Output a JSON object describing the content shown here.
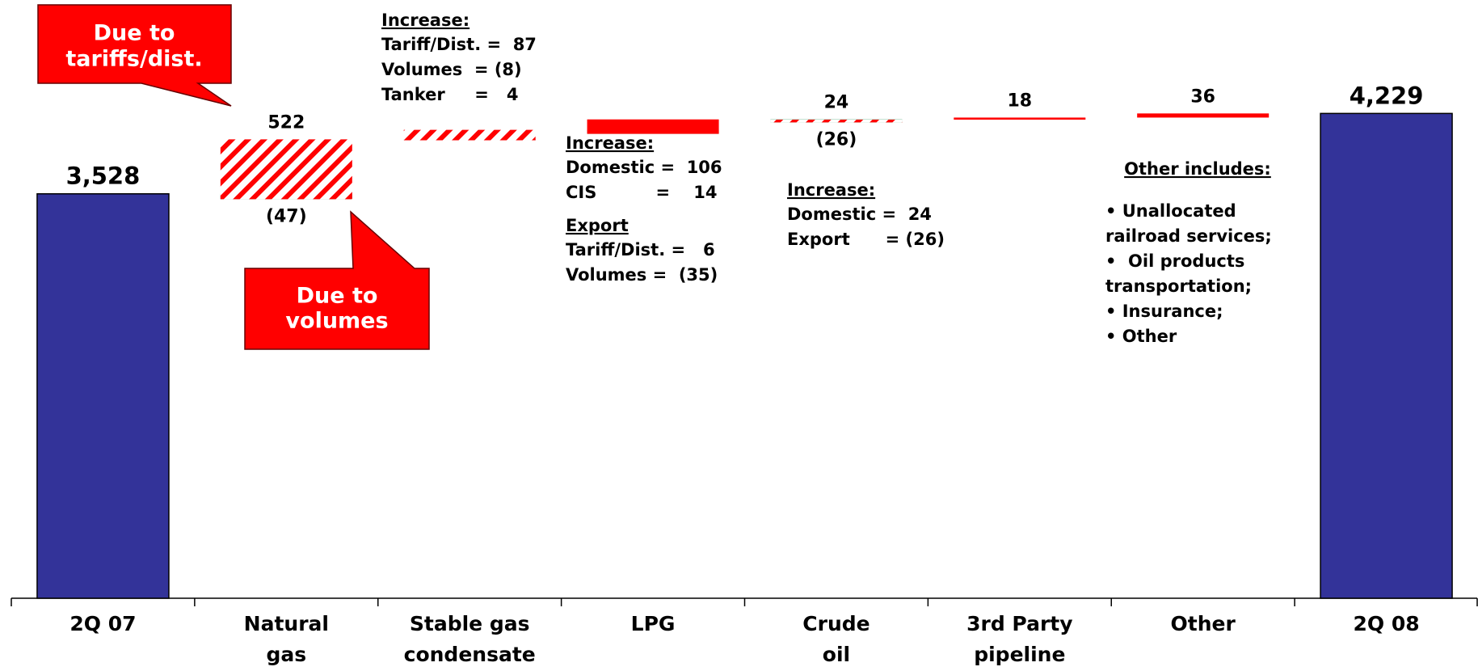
{
  "chart_data": {
    "type": "waterfall",
    "categories": [
      [
        "2Q 07"
      ],
      [
        "Natural",
        "gas"
      ],
      [
        "Stable gas",
        "condensate"
      ],
      [
        "LPG"
      ],
      [
        "Crude",
        "oil"
      ],
      [
        "3rd Party",
        "pipeline"
      ],
      [
        "Other"
      ],
      [
        "2Q 08"
      ]
    ],
    "totals": [
      3528,
      null,
      null,
      null,
      null,
      null,
      null,
      4229
    ],
    "total_labels": [
      "3,528",
      null,
      null,
      null,
      null,
      null,
      null,
      "4,229"
    ],
    "increases": [
      null,
      522,
      91,
      126,
      24,
      18,
      36,
      null
    ],
    "show_increase_labels": [
      false,
      true,
      false,
      false,
      true,
      true,
      true,
      false
    ],
    "decreases": [
      null,
      -47,
      -8,
      -35,
      -26,
      null,
      null,
      null
    ],
    "decrease_labels": [
      null,
      "(47)",
      null,
      null,
      "(26)",
      null,
      null,
      null
    ],
    "hatched": [
      false,
      true,
      true,
      false,
      true,
      false,
      false,
      false
    ],
    "total_color": "#333399",
    "increase_color": "#ff0000",
    "decrease_color": "#339966",
    "ylim": [
      0,
      5000
    ],
    "callouts": [
      [
        "Due to",
        "tariffs/dist."
      ],
      [
        "Due to",
        "volumes"
      ]
    ],
    "notes": [
      [
        {
          "heading": "Increase:",
          "lines": [
            "Tariff/Dist. =  87",
            "Volumes  = (8)",
            "Tanker     =   4"
          ]
        }
      ],
      [
        {
          "heading": "Increase:",
          "lines": [
            "Domestic =  106",
            "CIS          =    14"
          ]
        },
        {
          "heading": "Export",
          "lines": [
            "Tariff/Dist. =   6",
            "Volumes =  (35)"
          ]
        }
      ],
      [
        {
          "heading": "Increase:",
          "lines": [
            "Domestic =  24",
            "Export      = (26)"
          ]
        }
      ],
      [
        {
          "heading": "Other includes:",
          "lines": [
            "• Unallocated",
            "railroad services;",
            "•  Oil products",
            "transportation;",
            "• Insurance;",
            "• Other"
          ]
        }
      ]
    ]
  }
}
